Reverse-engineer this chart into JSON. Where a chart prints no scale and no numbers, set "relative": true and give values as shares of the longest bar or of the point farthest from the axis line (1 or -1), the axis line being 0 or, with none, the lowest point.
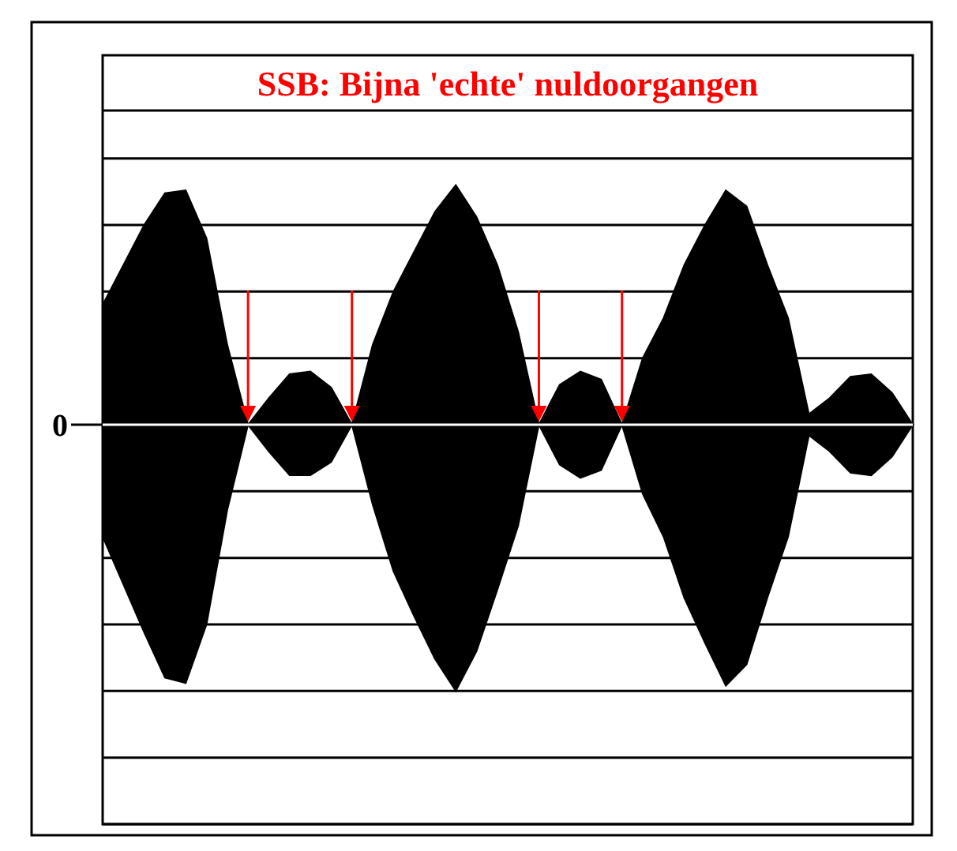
{
  "chart_data": {
    "type": "area",
    "title": "SSB: Bijna 'echte' nuldoorgangen",
    "relative": true,
    "grid": true,
    "annotations": [
      "0"
    ],
    "categories": [
      null,
      null,
      null,
      null,
      null,
      null,
      null,
      null,
      null,
      null,
      null,
      null,
      null,
      null,
      null,
      null,
      null,
      null,
      null,
      null,
      null,
      null,
      null,
      null,
      null,
      null,
      null,
      null,
      null,
      null,
      null,
      null,
      null,
      null,
      null,
      null,
      null,
      null,
      null,
      null
    ],
    "series": [
      {
        "color": "#000000",
        "values": [
          0.45,
          0.6,
          0.75,
          0.87,
          0.88,
          0.7,
          0.3,
          0,
          0.1,
          0.19,
          0.2,
          0.14,
          0,
          0.3,
          0.5,
          0.65,
          0.8,
          0.9,
          0.78,
          0.6,
          0.35,
          0,
          0.15,
          0.2,
          0.17,
          0,
          0.25,
          0.4,
          0.6,
          0.75,
          0.88,
          0.82,
          0.6,
          0.4,
          0.04,
          0.1,
          0.18,
          0.19,
          0.12,
          0
        ]
      },
      {
        "color": "#000000",
        "values": [
          -0.42,
          -0.6,
          -0.78,
          -0.95,
          -0.97,
          -0.75,
          -0.32,
          0,
          -0.1,
          -0.19,
          -0.19,
          -0.14,
          0,
          -0.3,
          -0.55,
          -0.72,
          -0.88,
          -1,
          -0.85,
          -0.62,
          -0.38,
          0,
          -0.15,
          -0.2,
          -0.17,
          0,
          -0.26,
          -0.42,
          -0.65,
          -0.82,
          -0.98,
          -0.9,
          -0.65,
          -0.42,
          -0.04,
          -0.1,
          -0.18,
          -0.19,
          -0.12,
          0
        ]
      }
    ]
  }
}
